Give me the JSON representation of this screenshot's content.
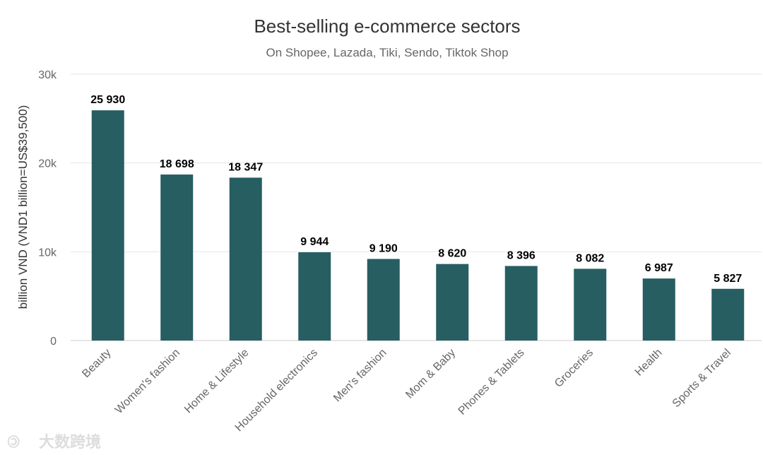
{
  "chart_data": {
    "type": "bar",
    "title": "Best-selling e-commerce sectors",
    "subtitle": "On Shopee, Lazada, Tiki, Sendo, Tiktok Shop",
    "ylabel": "billion VND (VND1 billion=US$39,500)",
    "xlabel": "",
    "ylim": [
      0,
      30000
    ],
    "yticks": [
      0,
      10000,
      20000,
      30000
    ],
    "ytick_labels": [
      "0",
      "10k",
      "20k",
      "30k"
    ],
    "grid": true,
    "categories": [
      "Beauty",
      "Women's fashion",
      "Home & Lifestyle",
      "Household electronics",
      "Men's fashion",
      "Mom & Baby",
      "Phones & Tablets",
      "Groceries",
      "Health",
      "Sports & Travel"
    ],
    "values": [
      25930,
      18698,
      18347,
      9944,
      9190,
      8620,
      8396,
      8082,
      6987,
      5827
    ],
    "data_labels": [
      "25 930",
      "18 698",
      "18 347",
      "9 944",
      "9 190",
      "8 620",
      "8 396",
      "8 082",
      "6 987",
      "5 827"
    ],
    "bar_color": "#265e62"
  },
  "watermark": {
    "text": "大数跨境",
    "logo": "100"
  }
}
